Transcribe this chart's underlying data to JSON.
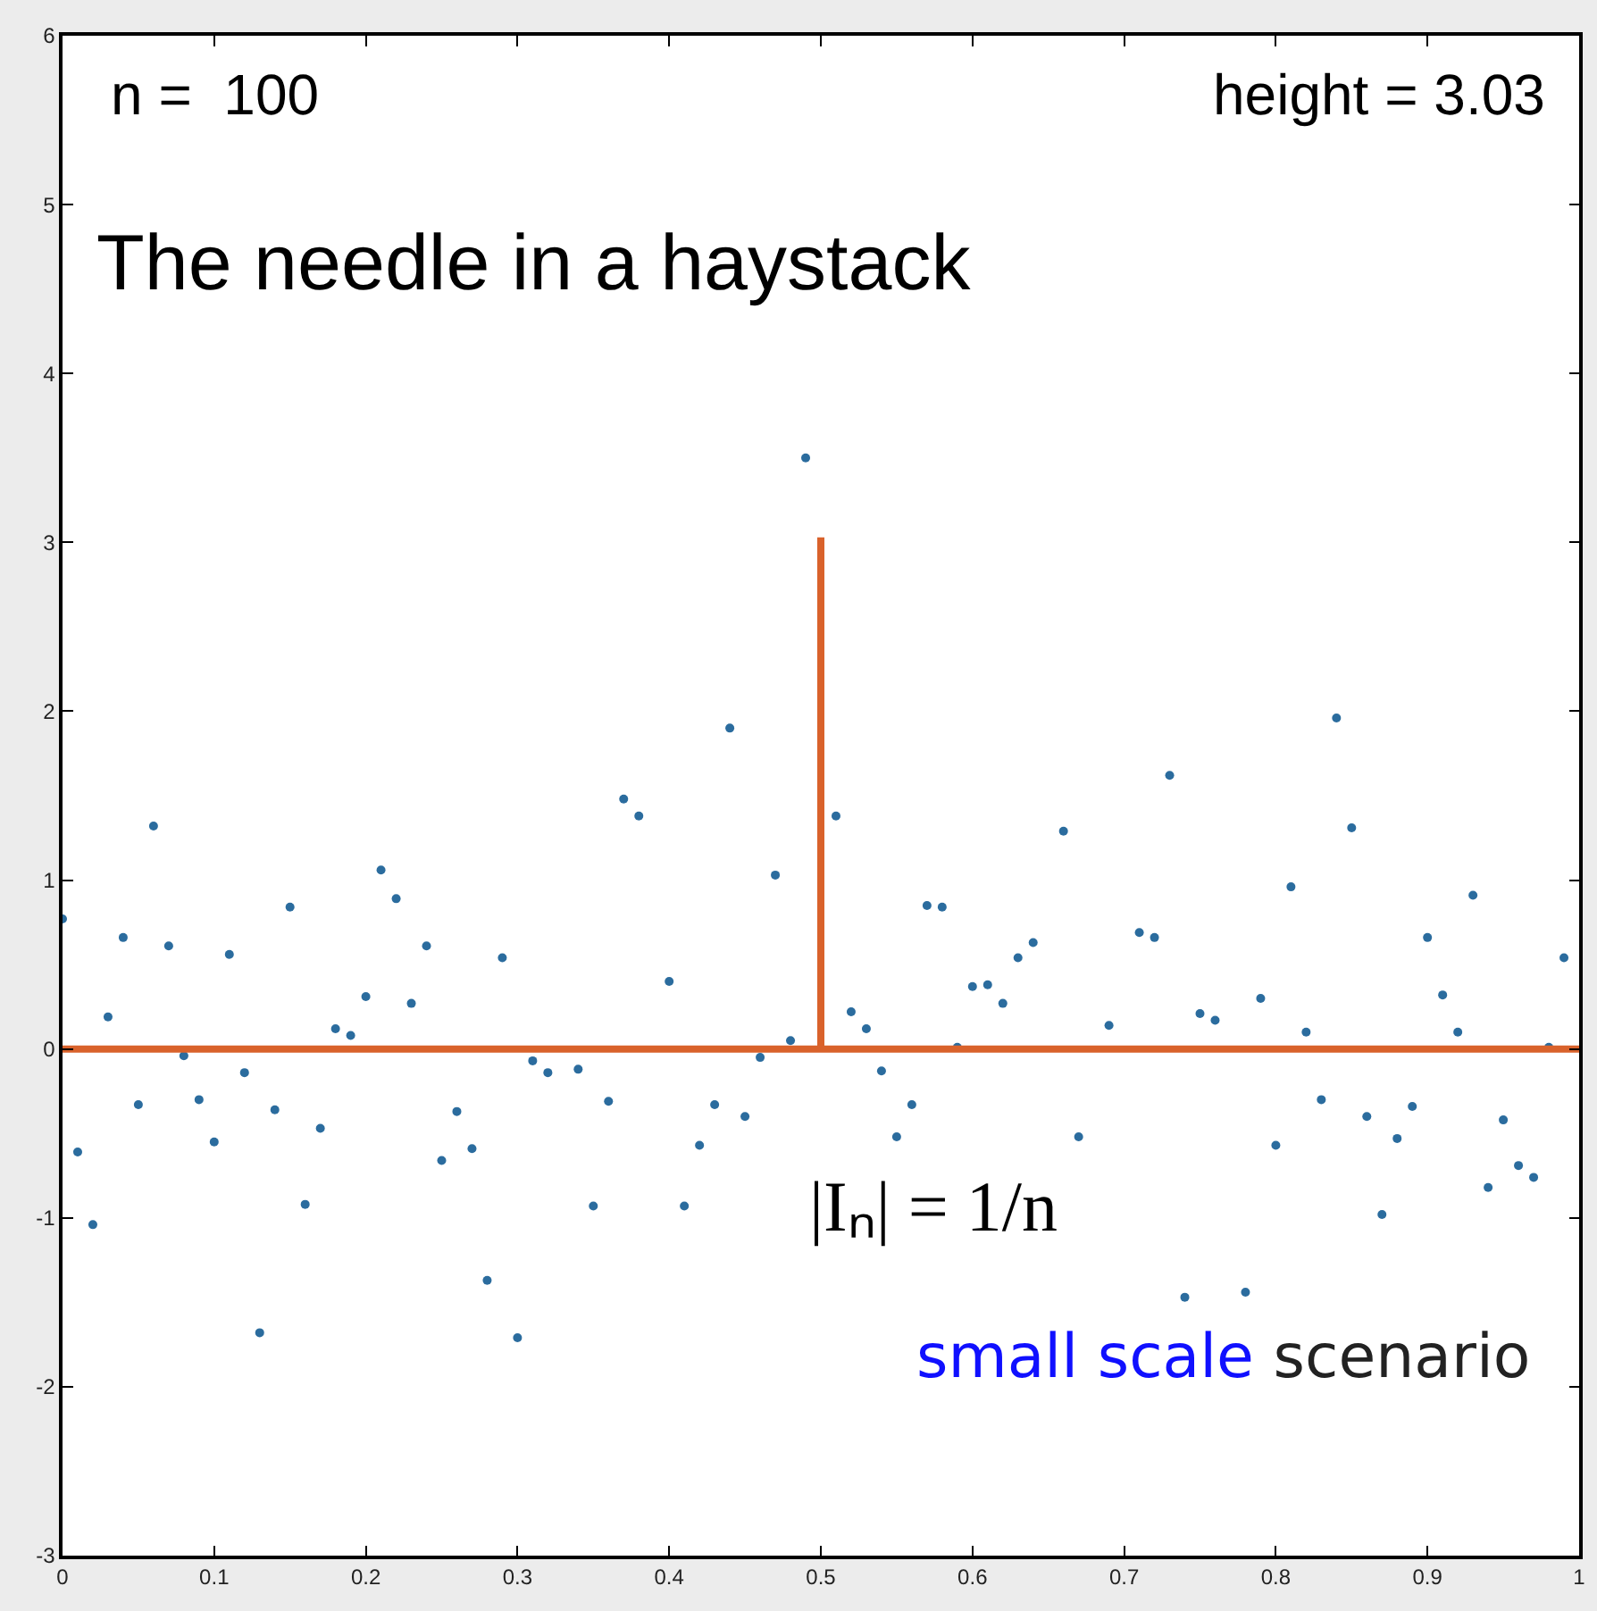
{
  "chart_data": {
    "type": "scatter",
    "annotations": [
      "n =  100",
      "height = 3.03",
      "The needle in a haystack",
      "|Iₙ| = 1/n",
      "small scale",
      "scenario"
    ],
    "series": [
      {
        "color": "#2b6c9e",
        "marker": "circle",
        "x": [
          0,
          0.01,
          0.02,
          0.03,
          0.04,
          0.05,
          0.06,
          0.07,
          0.08,
          0.09,
          0.1,
          0.11,
          0.12,
          0.13,
          0.14,
          0.15,
          0.16,
          0.17,
          0.18,
          0.19,
          0.2,
          0.21,
          0.22,
          0.23,
          0.24,
          0.25,
          0.26,
          0.27,
          0.28,
          0.29,
          0.3,
          0.31,
          0.32,
          0.33,
          0.34,
          0.35,
          0.36,
          0.37,
          0.38,
          0.39,
          0.4,
          0.41,
          0.42,
          0.43,
          0.44,
          0.45,
          0.46,
          0.47,
          0.48,
          0.49,
          0.5,
          0.51,
          0.52,
          0.53,
          0.54,
          0.55,
          0.56,
          0.57,
          0.58,
          0.59,
          0.6,
          0.61,
          0.62,
          0.63,
          0.64,
          0.65,
          0.66,
          0.67,
          0.68,
          0.69,
          0.7,
          0.71,
          0.72,
          0.73,
          0.74,
          0.75,
          0.76,
          0.77,
          0.78,
          0.79,
          0.8,
          0.81,
          0.82,
          0.83,
          0.84,
          0.85,
          0.86,
          0.87,
          0.88,
          0.89,
          0.9,
          0.91,
          0.92,
          0.93,
          0.94,
          0.95,
          0.96,
          0.97,
          0.98,
          0.99
        ],
        "values": [
          0.77,
          -0.61,
          -1.04,
          0.19,
          0.66,
          -0.33,
          1.32,
          0.61,
          -0.04,
          -0.3,
          -0.55,
          0.56,
          -0.14,
          -1.68,
          -0.36,
          0.84,
          -0.92,
          -0.47,
          0.12,
          0.08,
          0.31,
          1.06,
          0.89,
          0.27,
          0.61,
          -0.66,
          -0.37,
          -0.59,
          -1.37,
          0.54,
          -1.71,
          -0.07,
          -0.14,
          null,
          -0.12,
          -0.93,
          -0.31,
          1.48,
          1.38,
          null,
          0.4,
          -0.93,
          -0.57,
          -0.33,
          1.9,
          -0.4,
          -0.05,
          1.03,
          0.05,
          3.5,
          null,
          1.38,
          0.22,
          0.12,
          -0.13,
          -0.52,
          -0.33,
          0.85,
          0.84,
          0.01,
          0.37,
          0.38,
          0.27,
          0.54,
          0.63,
          null,
          1.29,
          -0.52,
          null,
          0.14,
          null,
          0.69,
          0.66,
          1.62,
          -1.47,
          0.21,
          0.17,
          null,
          -1.44,
          0.3,
          -0.57,
          0.96,
          0.1,
          -0.3,
          1.96,
          1.31,
          -0.4,
          -0.98,
          -0.53,
          -0.34,
          0.66,
          0.32,
          0.1,
          0.91,
          -0.82,
          -0.42,
          -0.69,
          -0.76,
          0.01,
          0.54
        ]
      },
      {
        "type": "line",
        "color": "#d9622b",
        "x": [
          0,
          0.5,
          0.5,
          0.5,
          1
        ],
        "values": [
          0,
          0,
          3.03,
          0,
          0
        ]
      }
    ],
    "xlim": [
      0,
      1
    ],
    "xticks": [
      0,
      0.1,
      0.2,
      0.3,
      0.4,
      0.5,
      0.6,
      0.7,
      0.8,
      0.9,
      1
    ],
    "ylim": [
      -3,
      6
    ],
    "yticks": [
      -3,
      -2,
      -1,
      0,
      1,
      2,
      3,
      4,
      5,
      6
    ]
  }
}
